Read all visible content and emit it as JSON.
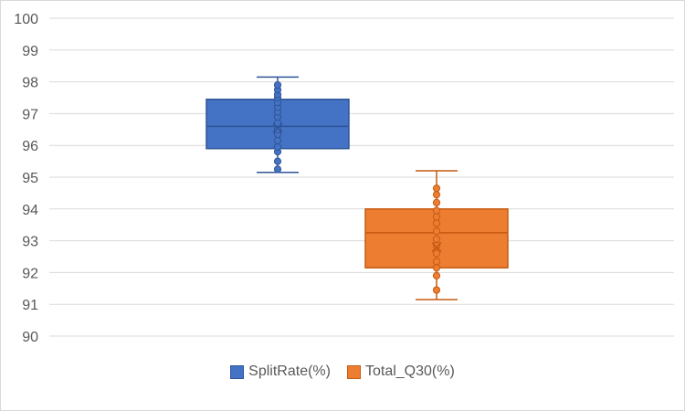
{
  "chart_data": {
    "type": "box",
    "title": "",
    "xlabel": "",
    "ylabel": "",
    "ylim": [
      90,
      100
    ],
    "yticks": [
      90,
      91,
      92,
      93,
      94,
      95,
      96,
      97,
      98,
      99,
      100
    ],
    "grid": true,
    "legend_position": "bottom",
    "series": [
      {
        "name": "SplitRate(%)",
        "color": "#4472c4",
        "stroke": "#2f5597",
        "min": 95.15,
        "q1": 95.9,
        "median": 96.6,
        "q3": 97.45,
        "max": 98.15,
        "mean": 96.55,
        "points": [
          95.25,
          95.5,
          95.8,
          95.95,
          96.15,
          96.35,
          96.5,
          96.7,
          96.9,
          97.05,
          97.2,
          97.35,
          97.5,
          97.6,
          97.75,
          97.9
        ]
      },
      {
        "name": "Total_Q30(%)",
        "color": "#ed7d31",
        "stroke": "#c55a11",
        "min": 91.15,
        "q1": 92.15,
        "median": 93.25,
        "q3": 94.0,
        "max": 95.2,
        "mean": 92.8,
        "points": [
          91.45,
          91.9,
          92.15,
          92.35,
          92.6,
          92.85,
          93.05,
          93.3,
          93.55,
          93.75,
          93.95,
          94.2,
          94.45,
          94.65
        ]
      }
    ]
  }
}
